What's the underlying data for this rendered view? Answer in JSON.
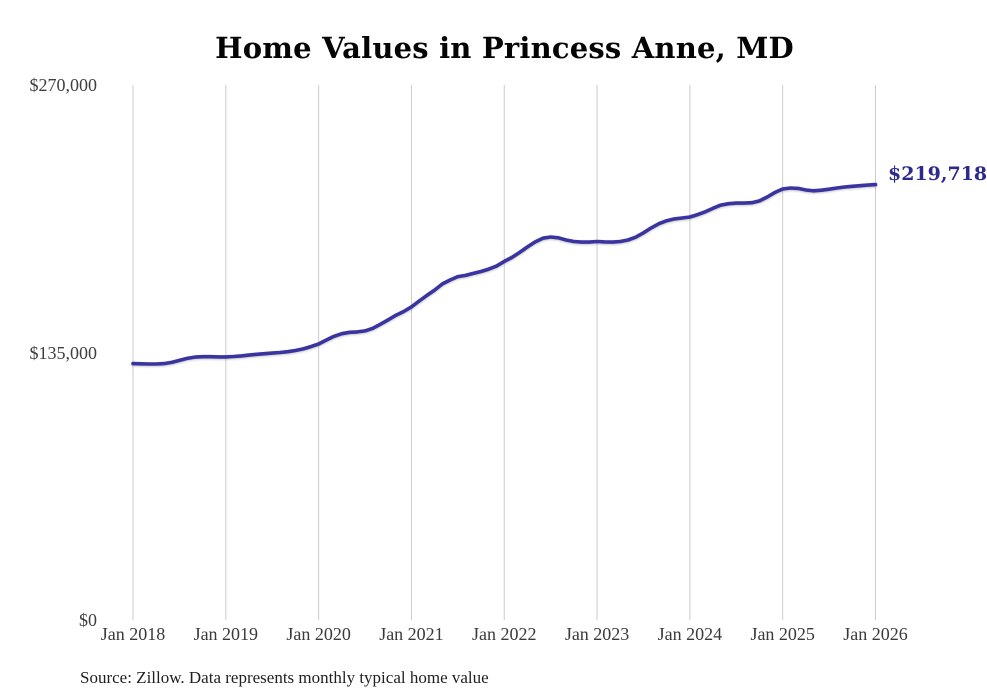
{
  "title": "Home Values in Princess Anne, MD",
  "source_note": "Source: Zillow. Data represents monthly typical home value",
  "colors": {
    "line": "#3a34a0",
    "annotation_text": "#2d2a8c",
    "gridline": "#cccccc",
    "axis_text": "#3f3f3f",
    "title_text": "#050505",
    "background": "#ffffff"
  },
  "chart_data": {
    "type": "line",
    "title": "Home Values in Princess Anne, MD",
    "frequency": "monthly",
    "x_start": "Jan 2018",
    "x_end": "Jan 2026",
    "x_tick_labels": [
      "Jan 2018",
      "Jan 2019",
      "Jan 2020",
      "Jan 2021",
      "Jan 2022",
      "Jan 2023",
      "Jan 2024",
      "Jan 2025",
      "Jan 2026"
    ],
    "y_ticks": [
      {
        "label": "$270,000",
        "value": 270000
      },
      {
        "label": "$135,000",
        "value": 135000
      },
      {
        "label": "$0",
        "value": 0
      }
    ],
    "ylim": [
      0,
      270000
    ],
    "grid": "vertical-only",
    "legend": "none",
    "end_label": "$219,718",
    "final_value": 219718,
    "series": [
      {
        "name": "Typical home value",
        "values": [
          129400,
          129300,
          129200,
          129200,
          129400,
          130000,
          131000,
          132000,
          132700,
          132900,
          132900,
          132800,
          132800,
          133000,
          133300,
          133700,
          134100,
          134400,
          134700,
          135000,
          135400,
          136000,
          136800,
          138000,
          139300,
          141300,
          143200,
          144500,
          145200,
          145400,
          145900,
          147200,
          149300,
          151500,
          153800,
          155700,
          158000,
          161000,
          163800,
          166500,
          169600,
          171600,
          173300,
          173900,
          174900,
          175900,
          177100,
          178600,
          181000,
          183000,
          185500,
          188300,
          190800,
          192700,
          193300,
          192900,
          191800,
          191000,
          190700,
          190700,
          191000,
          190800,
          190700,
          191000,
          191800,
          193200,
          195400,
          197900,
          200000,
          201500,
          202400,
          202900,
          203400,
          204600,
          206000,
          207800,
          209400,
          210100,
          210400,
          210400,
          210600,
          211500,
          213500,
          215800,
          217500,
          218000,
          217800,
          217000,
          216600,
          216900,
          217400,
          218000,
          218500,
          218900,
          219200,
          219500,
          219718
        ]
      }
    ]
  }
}
